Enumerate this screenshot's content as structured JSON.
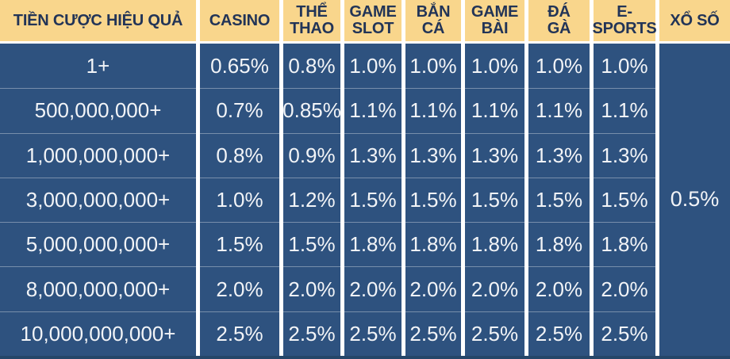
{
  "chart_data": {
    "type": "table",
    "title": "TIỀN CƯỢC HIỆU QUẢ",
    "corner_header": "TIỀN CƯỢC HIỆU QUẢ",
    "columns": [
      "CASINO",
      "THỂ\nTHAO",
      "GAME\nSLOT",
      "BẮN\nCÁ",
      "GAME\nBÀI",
      "ĐÁ\nGÀ",
      "E-\nSPORTS",
      "XỔ SỐ"
    ],
    "rows": [
      {
        "tier": "1+",
        "rates": [
          "0.65%",
          "0.8%",
          "1.0%",
          "1.0%",
          "1.0%",
          "1.0%",
          "1.0%"
        ]
      },
      {
        "tier": "500,000,000+",
        "rates": [
          "0.7%",
          "0.85%",
          "1.1%",
          "1.1%",
          "1.1%",
          "1.1%",
          "1.1%"
        ]
      },
      {
        "tier": "1,000,000,000+",
        "rates": [
          "0.8%",
          "0.9%",
          "1.3%",
          "1.3%",
          "1.3%",
          "1.3%",
          "1.3%"
        ]
      },
      {
        "tier": "3,000,000,000+",
        "rates": [
          "1.0%",
          "1.2%",
          "1.5%",
          "1.5%",
          "1.5%",
          "1.5%",
          "1.5%"
        ]
      },
      {
        "tier": "5,000,000,000+",
        "rates": [
          "1.5%",
          "1.5%",
          "1.8%",
          "1.8%",
          "1.8%",
          "1.8%",
          "1.8%"
        ]
      },
      {
        "tier": "8,000,000,000+",
        "rates": [
          "2.0%",
          "2.0%",
          "2.0%",
          "2.0%",
          "2.0%",
          "2.0%",
          "2.0%"
        ]
      },
      {
        "tier": "10,000,000,000+",
        "rates": [
          "2.5%",
          "2.5%",
          "2.5%",
          "2.5%",
          "2.5%",
          "2.5%",
          "2.5%"
        ]
      }
    ],
    "lottery_rate": "0.5%",
    "layout": {
      "lottery_cell_merged_across_all_rows": true,
      "grid": "on"
    }
  },
  "colors": {
    "header_bg": "#F9D68C",
    "header_text": "#223457",
    "cell_bg": "#2E527F",
    "cell_text": "#F2F4F7",
    "separator": "#FFFFFF",
    "row_line": "rgba(255,255,255,0.35)",
    "bottom_edge": "#254669"
  }
}
